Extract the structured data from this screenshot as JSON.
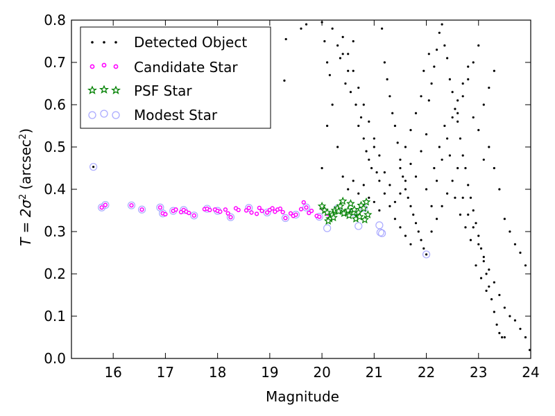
{
  "chart_data": {
    "type": "scatter",
    "title": "",
    "xlabel": "Magnitude",
    "ylabel": {
      "main": "T = 2σ",
      "sup": "2",
      "unit": "(arcsec",
      "unit_sup": "2",
      "close": ")"
    },
    "xlim": [
      15.2,
      24
    ],
    "ylim": [
      0,
      0.8
    ],
    "xticks": [
      16,
      17,
      18,
      19,
      20,
      21,
      22,
      23,
      24
    ],
    "yticks": [
      0.0,
      0.1,
      0.2,
      0.3,
      0.4,
      0.5,
      0.6,
      0.7,
      0.8
    ],
    "ytick_labels": [
      "0.0",
      "0.1",
      "0.2",
      "0.3",
      "0.4",
      "0.5",
      "0.6",
      "0.7",
      "0.8"
    ],
    "grid": false,
    "legend_position": "top-left",
    "series": [
      {
        "name": "Detected Object",
        "color": "#000000",
        "marker": "dot",
        "points": [
          [
            15.62,
            0.453
          ],
          [
            19.28,
            0.657
          ],
          [
            19.31,
            0.755
          ],
          [
            19.6,
            0.78
          ],
          [
            19.7,
            0.79
          ],
          [
            20.0,
            0.795
          ],
          [
            20.05,
            0.75
          ],
          [
            20.1,
            0.7
          ],
          [
            20.15,
            0.67
          ],
          [
            20.2,
            0.78
          ],
          [
            20.3,
            0.74
          ],
          [
            20.35,
            0.71
          ],
          [
            20.4,
            0.72
          ],
          [
            20.45,
            0.65
          ],
          [
            20.5,
            0.68
          ],
          [
            20.55,
            0.63
          ],
          [
            20.6,
            0.75
          ],
          [
            20.65,
            0.6
          ],
          [
            20.7,
            0.55
          ],
          [
            20.75,
            0.57
          ],
          [
            20.8,
            0.52
          ],
          [
            20.85,
            0.49
          ],
          [
            20.9,
            0.47
          ],
          [
            20.95,
            0.45
          ],
          [
            21.0,
            0.5
          ],
          [
            21.05,
            0.44
          ],
          [
            21.1,
            0.42
          ],
          [
            21.15,
            0.78
          ],
          [
            21.2,
            0.7
          ],
          [
            21.25,
            0.66
          ],
          [
            21.3,
            0.62
          ],
          [
            21.35,
            0.58
          ],
          [
            21.4,
            0.55
          ],
          [
            21.45,
            0.51
          ],
          [
            21.5,
            0.47
          ],
          [
            21.55,
            0.43
          ],
          [
            21.6,
            0.4
          ],
          [
            21.65,
            0.38
          ],
          [
            21.7,
            0.36
          ],
          [
            21.75,
            0.34
          ],
          [
            21.8,
            0.32
          ],
          [
            21.85,
            0.3
          ],
          [
            21.9,
            0.28
          ],
          [
            21.95,
            0.26
          ],
          [
            22.0,
            0.246
          ],
          [
            20.0,
            0.45
          ],
          [
            20.1,
            0.55
          ],
          [
            20.2,
            0.6
          ],
          [
            20.3,
            0.5
          ],
          [
            20.4,
            0.43
          ],
          [
            20.5,
            0.4
          ],
          [
            20.6,
            0.42
          ],
          [
            20.7,
            0.39
          ],
          [
            20.8,
            0.41
          ],
          [
            20.9,
            0.38
          ],
          [
            21.0,
            0.37
          ],
          [
            21.1,
            0.35
          ],
          [
            21.2,
            0.39
          ],
          [
            21.3,
            0.36
          ],
          [
            21.4,
            0.33
          ],
          [
            21.5,
            0.31
          ],
          [
            21.6,
            0.29
          ],
          [
            21.7,
            0.27
          ],
          [
            21.8,
            0.43
          ],
          [
            21.9,
            0.49
          ],
          [
            22.0,
            0.53
          ],
          [
            22.05,
            0.61
          ],
          [
            22.1,
            0.65
          ],
          [
            22.15,
            0.69
          ],
          [
            22.2,
            0.73
          ],
          [
            22.25,
            0.77
          ],
          [
            22.3,
            0.79
          ],
          [
            22.35,
            0.74
          ],
          [
            22.4,
            0.71
          ],
          [
            22.45,
            0.66
          ],
          [
            22.5,
            0.63
          ],
          [
            22.55,
            0.59
          ],
          [
            22.6,
            0.56
          ],
          [
            22.65,
            0.52
          ],
          [
            22.7,
            0.48
          ],
          [
            22.75,
            0.45
          ],
          [
            22.8,
            0.41
          ],
          [
            22.85,
            0.38
          ],
          [
            22.9,
            0.35
          ],
          [
            22.95,
            0.32
          ],
          [
            23.0,
            0.29
          ],
          [
            23.05,
            0.26
          ],
          [
            23.1,
            0.23
          ],
          [
            23.15,
            0.2
          ],
          [
            23.2,
            0.17
          ],
          [
            23.25,
            0.14
          ],
          [
            23.3,
            0.11
          ],
          [
            23.35,
            0.08
          ],
          [
            23.4,
            0.06
          ],
          [
            23.45,
            0.05
          ],
          [
            23.5,
            0.05
          ],
          [
            22.1,
            0.3
          ],
          [
            22.2,
            0.33
          ],
          [
            22.3,
            0.36
          ],
          [
            22.4,
            0.39
          ],
          [
            22.5,
            0.42
          ],
          [
            22.6,
            0.45
          ],
          [
            22.7,
            0.38
          ],
          [
            22.8,
            0.34
          ],
          [
            22.9,
            0.31
          ],
          [
            23.0,
            0.27
          ],
          [
            23.1,
            0.24
          ],
          [
            23.2,
            0.21
          ],
          [
            23.3,
            0.18
          ],
          [
            23.4,
            0.15
          ],
          [
            23.5,
            0.12
          ],
          [
            23.6,
            0.1
          ],
          [
            23.7,
            0.09
          ],
          [
            23.8,
            0.07
          ],
          [
            23.9,
            0.05
          ],
          [
            23.98,
            0.02
          ],
          [
            23.0,
            0.74
          ],
          [
            22.9,
            0.7
          ],
          [
            22.8,
            0.66
          ],
          [
            22.7,
            0.62
          ],
          [
            22.6,
            0.58
          ],
          [
            23.2,
            0.5
          ],
          [
            23.3,
            0.45
          ],
          [
            23.1,
            0.47
          ],
          [
            23.4,
            0.4
          ],
          [
            23.5,
            0.33
          ],
          [
            23.6,
            0.3
          ],
          [
            23.7,
            0.27
          ],
          [
            23.8,
            0.25
          ],
          [
            23.9,
            0.22
          ],
          [
            21.9,
            0.62
          ],
          [
            21.8,
            0.58
          ],
          [
            21.7,
            0.54
          ],
          [
            21.6,
            0.5
          ],
          [
            21.5,
            0.45
          ],
          [
            21.95,
            0.68
          ],
          [
            22.05,
            0.72
          ],
          [
            22.15,
            0.45
          ],
          [
            22.25,
            0.5
          ],
          [
            22.35,
            0.55
          ],
          [
            22.45,
            0.48
          ],
          [
            22.55,
            0.38
          ],
          [
            22.65,
            0.34
          ],
          [
            22.75,
            0.31
          ],
          [
            22.85,
            0.28
          ],
          [
            22.95,
            0.22
          ],
          [
            23.05,
            0.19
          ],
          [
            23.15,
            0.16
          ],
          [
            22.0,
            0.4
          ],
          [
            22.1,
            0.36
          ],
          [
            22.2,
            0.42
          ],
          [
            22.3,
            0.47
          ],
          [
            22.4,
            0.52
          ],
          [
            22.5,
            0.57
          ],
          [
            22.6,
            0.61
          ],
          [
            22.7,
            0.65
          ],
          [
            22.8,
            0.69
          ],
          [
            22.9,
            0.57
          ],
          [
            23.0,
            0.54
          ],
          [
            23.1,
            0.6
          ],
          [
            23.2,
            0.64
          ],
          [
            23.3,
            0.68
          ],
          [
            21.7,
            0.46
          ],
          [
            21.6,
            0.42
          ],
          [
            21.5,
            0.39
          ],
          [
            21.4,
            0.37
          ],
          [
            21.3,
            0.41
          ],
          [
            21.2,
            0.44
          ],
          [
            21.1,
            0.48
          ],
          [
            21.0,
            0.52
          ],
          [
            20.9,
            0.56
          ],
          [
            20.8,
            0.6
          ],
          [
            20.7,
            0.64
          ],
          [
            20.6,
            0.68
          ],
          [
            20.5,
            0.72
          ],
          [
            20.4,
            0.76
          ]
        ]
      },
      {
        "name": "Candidate Star",
        "color": "#ff00ff",
        "marker": "small-circle",
        "points": [
          [
            15.78,
            0.357
          ],
          [
            15.85,
            0.363
          ],
          [
            16.35,
            0.362
          ],
          [
            16.55,
            0.352
          ],
          [
            16.9,
            0.357
          ],
          [
            16.95,
            0.343
          ],
          [
            17.0,
            0.341
          ],
          [
            17.15,
            0.349
          ],
          [
            17.2,
            0.352
          ],
          [
            17.3,
            0.346
          ],
          [
            17.35,
            0.351
          ],
          [
            17.4,
            0.347
          ],
          [
            17.45,
            0.344
          ],
          [
            17.55,
            0.338
          ],
          [
            17.75,
            0.353
          ],
          [
            17.8,
            0.354
          ],
          [
            17.85,
            0.351
          ],
          [
            17.95,
            0.352
          ],
          [
            18.0,
            0.349
          ],
          [
            18.05,
            0.347
          ],
          [
            18.15,
            0.352
          ],
          [
            18.2,
            0.343
          ],
          [
            18.25,
            0.334
          ],
          [
            18.35,
            0.355
          ],
          [
            18.4,
            0.351
          ],
          [
            18.55,
            0.35
          ],
          [
            18.6,
            0.356
          ],
          [
            18.65,
            0.345
          ],
          [
            18.75,
            0.342
          ],
          [
            18.8,
            0.356
          ],
          [
            18.85,
            0.349
          ],
          [
            18.95,
            0.345
          ],
          [
            19.0,
            0.351
          ],
          [
            19.05,
            0.355
          ],
          [
            19.1,
            0.347
          ],
          [
            19.15,
            0.352
          ],
          [
            19.2,
            0.354
          ],
          [
            19.25,
            0.346
          ],
          [
            19.3,
            0.332
          ],
          [
            19.4,
            0.343
          ],
          [
            19.45,
            0.337
          ],
          [
            19.5,
            0.34
          ],
          [
            19.6,
            0.353
          ],
          [
            19.65,
            0.369
          ],
          [
            19.7,
            0.357
          ],
          [
            19.75,
            0.344
          ],
          [
            19.8,
            0.349
          ],
          [
            19.9,
            0.337
          ],
          [
            19.95,
            0.335
          ],
          [
            20.0,
            0.355
          ],
          [
            20.05,
            0.351
          ],
          [
            20.1,
            0.342
          ],
          [
            20.15,
            0.332
          ]
        ]
      },
      {
        "name": "PSF Star",
        "color": "#008000",
        "marker": "star",
        "points": [
          [
            20.0,
            0.36
          ],
          [
            20.05,
            0.35
          ],
          [
            20.1,
            0.345
          ],
          [
            20.15,
            0.33
          ],
          [
            20.2,
            0.34
          ],
          [
            20.25,
            0.35
          ],
          [
            20.3,
            0.355
          ],
          [
            20.35,
            0.36
          ],
          [
            20.4,
            0.372
          ],
          [
            20.45,
            0.345
          ],
          [
            20.5,
            0.35
          ],
          [
            20.55,
            0.366
          ],
          [
            20.6,
            0.345
          ],
          [
            20.65,
            0.33
          ],
          [
            20.7,
            0.345
          ],
          [
            20.75,
            0.362
          ],
          [
            20.8,
            0.355
          ],
          [
            20.85,
            0.37
          ],
          [
            20.88,
            0.34
          ],
          [
            20.12,
            0.325
          ],
          [
            20.22,
            0.333
          ],
          [
            20.32,
            0.348
          ],
          [
            20.42,
            0.343
          ],
          [
            20.52,
            0.338
          ],
          [
            20.62,
            0.352
          ],
          [
            20.72,
            0.335
          ],
          [
            20.82,
            0.328
          ]
        ]
      },
      {
        "name": "Modest Star",
        "color": "#aaaaff",
        "marker": "open-circle",
        "points": [
          [
            15.62,
            0.453
          ],
          [
            15.78,
            0.357
          ],
          [
            15.85,
            0.363
          ],
          [
            16.35,
            0.362
          ],
          [
            16.55,
            0.352
          ],
          [
            16.9,
            0.357
          ],
          [
            16.95,
            0.343
          ],
          [
            17.15,
            0.349
          ],
          [
            17.35,
            0.351
          ],
          [
            17.55,
            0.338
          ],
          [
            17.8,
            0.354
          ],
          [
            18.0,
            0.349
          ],
          [
            18.25,
            0.334
          ],
          [
            18.6,
            0.356
          ],
          [
            18.95,
            0.345
          ],
          [
            19.3,
            0.332
          ],
          [
            19.5,
            0.34
          ],
          [
            19.7,
            0.357
          ],
          [
            19.95,
            0.335
          ],
          [
            20.1,
            0.308
          ],
          [
            20.3,
            0.355
          ],
          [
            20.6,
            0.345
          ],
          [
            20.7,
            0.313
          ],
          [
            20.8,
            0.355
          ],
          [
            21.1,
            0.315
          ],
          [
            21.12,
            0.298
          ],
          [
            21.15,
            0.296
          ],
          [
            22.0,
            0.246
          ]
        ]
      }
    ]
  }
}
